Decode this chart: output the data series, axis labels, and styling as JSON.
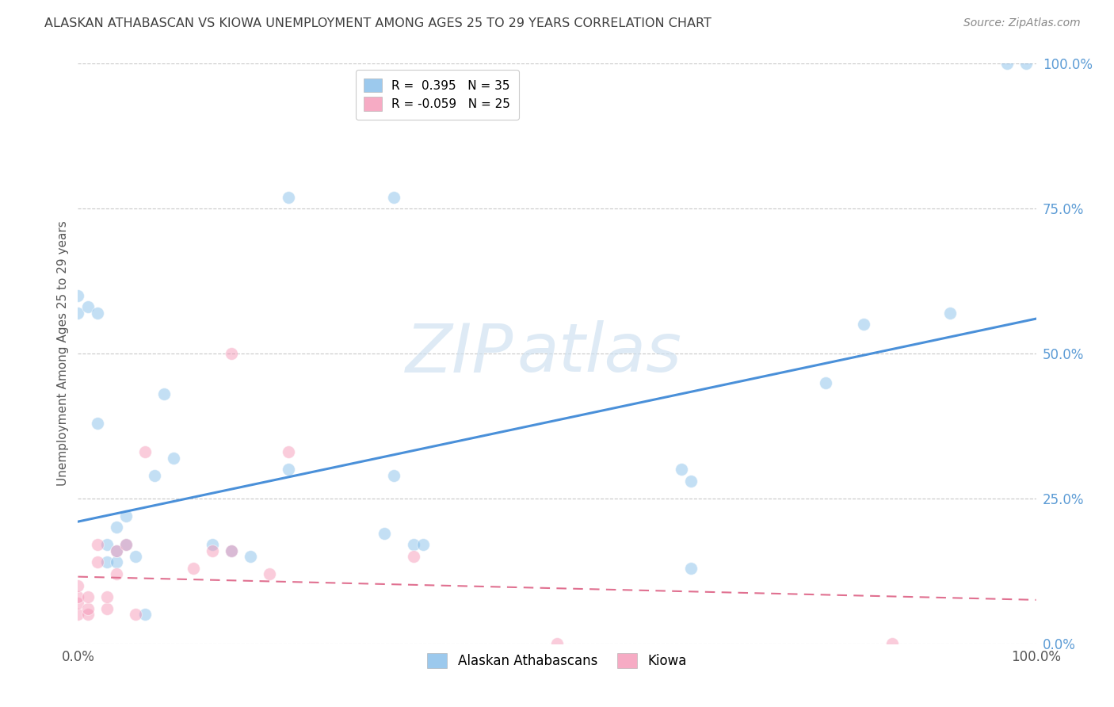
{
  "title": "ALASKAN ATHABASCAN VS KIOWA UNEMPLOYMENT AMONG AGES 25 TO 29 YEARS CORRELATION CHART",
  "source": "Source: ZipAtlas.com",
  "ylabel": "Unemployment Among Ages 25 to 29 years",
  "xlim": [
    0.0,
    1.0
  ],
  "ylim": [
    0.0,
    1.0
  ],
  "ytick_labels": [
    "0.0%",
    "25.0%",
    "50.0%",
    "75.0%",
    "100.0%"
  ],
  "ytick_vals": [
    0.0,
    0.25,
    0.5,
    0.75,
    1.0
  ],
  "legend_entries": [
    {
      "label": "R =  0.395   N = 35",
      "color": "#a8c8f0"
    },
    {
      "label": "R = -0.059   N = 25",
      "color": "#f0a8b8"
    }
  ],
  "blue_scatter_x": [
    0.0,
    0.0,
    0.01,
    0.02,
    0.02,
    0.03,
    0.03,
    0.04,
    0.04,
    0.04,
    0.05,
    0.05,
    0.06,
    0.07,
    0.08,
    0.09,
    0.1,
    0.14,
    0.16,
    0.18,
    0.22,
    0.22,
    0.32,
    0.33,
    0.33,
    0.35,
    0.36,
    0.63,
    0.64,
    0.64,
    0.78,
    0.82,
    0.91,
    0.97,
    0.99
  ],
  "blue_scatter_y": [
    0.57,
    0.6,
    0.58,
    0.57,
    0.38,
    0.14,
    0.17,
    0.2,
    0.14,
    0.16,
    0.17,
    0.22,
    0.15,
    0.05,
    0.29,
    0.43,
    0.32,
    0.17,
    0.16,
    0.15,
    0.3,
    0.77,
    0.19,
    0.77,
    0.29,
    0.17,
    0.17,
    0.3,
    0.13,
    0.28,
    0.45,
    0.55,
    0.57,
    1.0,
    1.0
  ],
  "pink_scatter_x": [
    0.0,
    0.0,
    0.0,
    0.0,
    0.01,
    0.01,
    0.01,
    0.02,
    0.02,
    0.03,
    0.03,
    0.04,
    0.04,
    0.05,
    0.06,
    0.07,
    0.12,
    0.14,
    0.16,
    0.16,
    0.2,
    0.22,
    0.35,
    0.5,
    0.85
  ],
  "pink_scatter_y": [
    0.05,
    0.07,
    0.08,
    0.1,
    0.05,
    0.06,
    0.08,
    0.14,
    0.17,
    0.06,
    0.08,
    0.12,
    0.16,
    0.17,
    0.05,
    0.33,
    0.13,
    0.16,
    0.16,
    0.5,
    0.12,
    0.33,
    0.15,
    0.0,
    0.0
  ],
  "blue_line_x": [
    0.0,
    1.0
  ],
  "blue_line_y": [
    0.21,
    0.56
  ],
  "pink_line_x": [
    0.0,
    1.0
  ],
  "pink_line_y": [
    0.115,
    0.075
  ],
  "scatter_size": 130,
  "scatter_alpha": 0.45,
  "blue_color": "#7bb8e8",
  "pink_color": "#f48fb1",
  "blue_line_color": "#4a90d9",
  "pink_line_color": "#e07090",
  "watermark_zip": "ZIP",
  "watermark_atlas": "atlas",
  "background_color": "#ffffff",
  "grid_color": "#c8c8c8",
  "right_axis_color": "#5b9bd5",
  "title_color": "#404040",
  "source_color": "#888888"
}
